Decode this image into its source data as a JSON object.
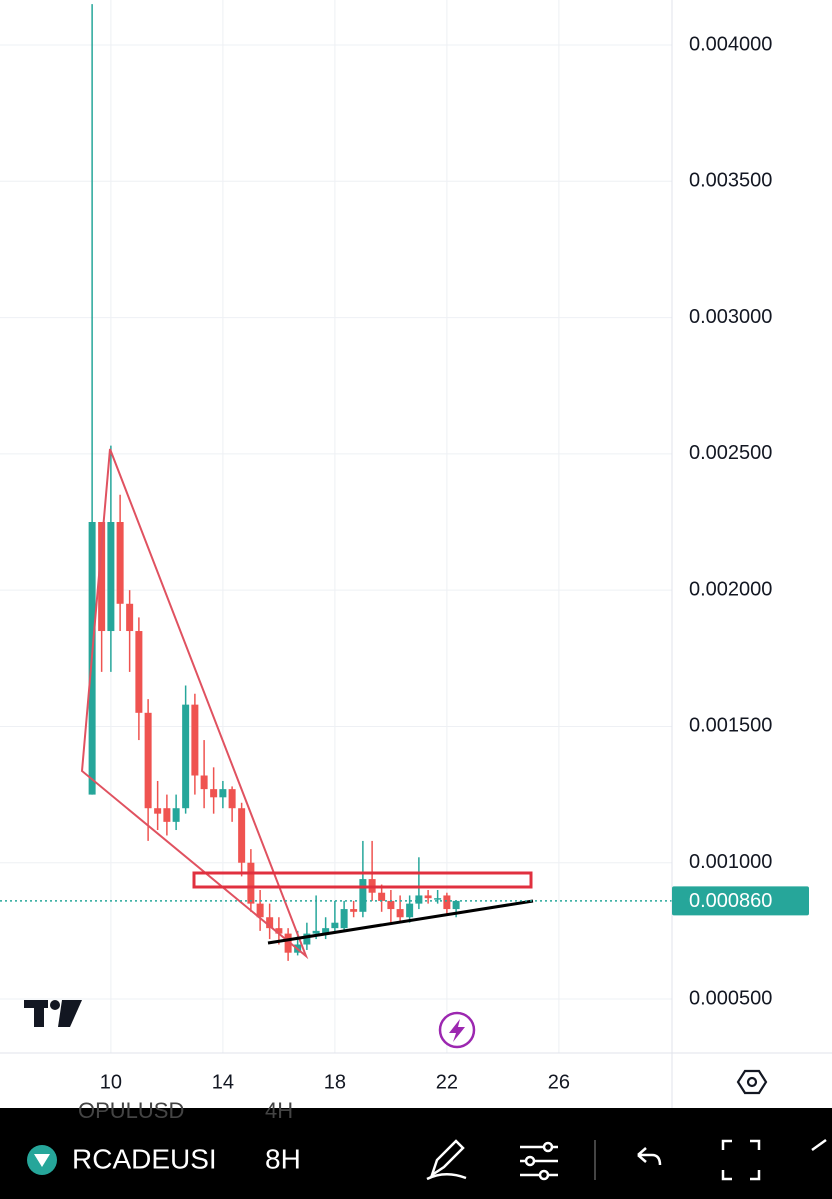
{
  "chart_data": {
    "type": "candlestick",
    "x": [
      9.33,
      9.67,
      10,
      10.33,
      10.67,
      11,
      11.33,
      11.67,
      12,
      12.33,
      12.67,
      13,
      13.33,
      13.67,
      14,
      14.33,
      14.67,
      15,
      15.33,
      15.67,
      16,
      16.33,
      16.67,
      17,
      17.33,
      17.67,
      18,
      18.33,
      18.67,
      19,
      19.33,
      19.67,
      20,
      20.33,
      20.67,
      21,
      21.33,
      21.67,
      22,
      22.33
    ],
    "open": [
      0.00125,
      0.00225,
      0.00185,
      0.00225,
      0.00195,
      0.00185,
      0.00155,
      0.0012,
      0.0012,
      0.00115,
      0.0012,
      0.00158,
      0.00132,
      0.00127,
      0.00124,
      0.00127,
      0.0012,
      0.001,
      0.00085,
      0.0008,
      0.00076,
      0.00074,
      0.00067,
      0.0007,
      0.00074,
      0.00074,
      0.00076,
      0.00076,
      0.00083,
      0.00082,
      0.00094,
      0.00089,
      0.00086,
      0.00083,
      0.0008,
      0.00085,
      0.00088,
      0.00087,
      0.00088,
      0.00083
    ],
    "high": [
      0.00415,
      0.00225,
      0.00253,
      0.00235,
      0.002,
      0.0019,
      0.0016,
      0.0013,
      0.00125,
      0.00125,
      0.00165,
      0.00162,
      0.00145,
      0.00135,
      0.0013,
      0.00128,
      0.00122,
      0.00105,
      0.0009,
      0.00085,
      0.0008,
      0.00076,
      0.00075,
      0.00078,
      0.00088,
      0.0008,
      0.00086,
      0.00086,
      0.00086,
      0.00108,
      0.00108,
      0.00092,
      0.0009,
      0.00088,
      0.00088,
      0.00102,
      0.0009,
      0.0009,
      0.00089,
      0.00086
    ],
    "low": [
      0.00125,
      0.0017,
      0.0017,
      0.00185,
      0.0017,
      0.00145,
      0.00108,
      0.00112,
      0.0011,
      0.00112,
      0.00118,
      0.00125,
      0.0012,
      0.00118,
      0.0012,
      0.00115,
      0.00095,
      0.00082,
      0.00075,
      0.00072,
      0.0007,
      0.00064,
      0.00066,
      0.00068,
      0.00072,
      0.00072,
      0.00074,
      0.00075,
      0.0008,
      0.0008,
      0.00086,
      0.00082,
      0.00078,
      0.00078,
      0.00078,
      0.00083,
      0.00085,
      0.00085,
      0.00081,
      0.0008
    ],
    "close": [
      0.00225,
      0.00185,
      0.00225,
      0.00195,
      0.00185,
      0.00155,
      0.0012,
      0.00118,
      0.00115,
      0.0012,
      0.00158,
      0.00132,
      0.00127,
      0.00124,
      0.00127,
      0.0012,
      0.001,
      0.00085,
      0.0008,
      0.00076,
      0.00074,
      0.00067,
      0.0007,
      0.00074,
      0.00075,
      0.00076,
      0.00078,
      0.00083,
      0.00082,
      0.00094,
      0.00089,
      0.00086,
      0.00083,
      0.0008,
      0.00085,
      0.00088,
      0.00087,
      0.00087,
      0.00083,
      0.00086
    ],
    "up_color": "#26a69a",
    "down_color": "#ef5350",
    "xlim": [
      6.04,
      30.04
    ],
    "xticks": [
      10,
      14,
      18,
      22,
      26
    ],
    "ylim": [
      0.000302,
      0.004165
    ],
    "yticks": [
      {
        "value": 0.0005,
        "label": "0.000500"
      },
      {
        "value": 0.001,
        "label": "0.001000"
      },
      {
        "value": 0.0015,
        "label": "0.001500"
      },
      {
        "value": 0.002,
        "label": "0.002000"
      },
      {
        "value": 0.0025,
        "label": "0.002500"
      },
      {
        "value": 0.003,
        "label": "0.003000"
      },
      {
        "value": 0.0035,
        "label": "0.003500"
      },
      {
        "value": 0.004,
        "label": "0.004000"
      }
    ],
    "grid": true,
    "current_price": {
      "value": 0.00086,
      "label": "0.000860"
    }
  },
  "toolbar": {
    "symbol": "RCADEUSI",
    "interval": "8H",
    "ghost_symbol": "OPULUSD",
    "ghost_interval": "4H"
  }
}
